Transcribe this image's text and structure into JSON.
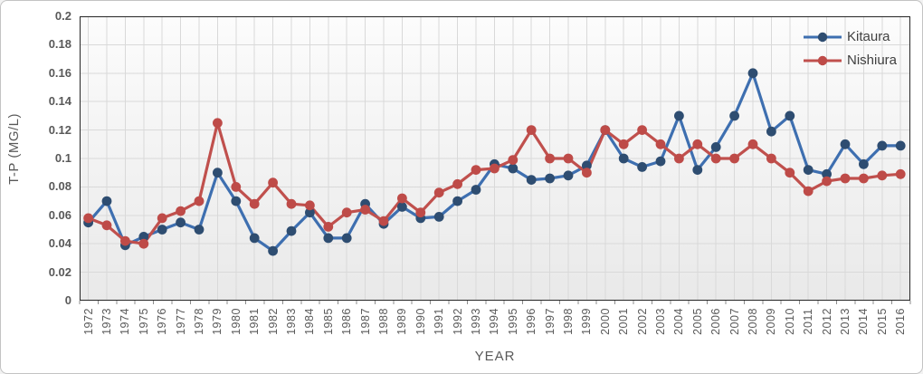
{
  "chart_data": {
    "type": "line",
    "title": "",
    "xlabel": "YEAR",
    "ylabel": "T-P (MG/L)",
    "ylim": [
      0,
      0.2
    ],
    "y_tick_step": 0.02,
    "y_tick_labels": [
      "0",
      "0.02",
      "0.04",
      "0.06",
      "0.08",
      "0.1",
      "0.12",
      "0.14",
      "0.16",
      "0.18",
      "0.2"
    ],
    "grid": true,
    "legend_position": "top-right-inside",
    "categories": [
      "1972",
      "1973",
      "1974",
      "1975",
      "1976",
      "1977",
      "1978",
      "1979",
      "1980",
      "1981",
      "1982",
      "1983",
      "1984",
      "1985",
      "1986",
      "1987",
      "1988",
      "1989",
      "1990",
      "1991",
      "1992",
      "1993",
      "1994",
      "1995",
      "1996",
      "1997",
      "1998",
      "1999",
      "2000",
      "2001",
      "2002",
      "2003",
      "2004",
      "2005",
      "2006",
      "2007",
      "2008",
      "2009",
      "2010",
      "2011",
      "2012",
      "2013",
      "2014",
      "2015",
      "2016"
    ],
    "series": [
      {
        "name": "Kitaura",
        "color": "#3E6FB0",
        "marker_color": "#2E4D71",
        "values": [
          0.055,
          0.07,
          0.039,
          0.045,
          0.05,
          0.055,
          0.05,
          0.09,
          0.07,
          0.044,
          0.035,
          0.049,
          0.062,
          0.044,
          0.044,
          0.068,
          0.054,
          0.066,
          0.058,
          0.059,
          0.07,
          0.078,
          0.096,
          0.093,
          0.085,
          0.086,
          0.088,
          0.095,
          0.12,
          0.1,
          0.094,
          0.098,
          0.13,
          0.092,
          0.108,
          0.13,
          0.16,
          0.119,
          0.13,
          0.092,
          0.089,
          0.11,
          0.096,
          0.109,
          0.109
        ]
      },
      {
        "name": "Nishiura",
        "color": "#C0504D",
        "marker_color": "#BE4B48",
        "values": [
          0.058,
          0.053,
          0.042,
          0.04,
          0.058,
          0.063,
          0.07,
          0.125,
          0.08,
          0.068,
          0.083,
          0.068,
          0.067,
          0.052,
          0.062,
          0.064,
          0.056,
          0.072,
          0.062,
          0.076,
          0.082,
          0.092,
          0.093,
          0.099,
          0.12,
          0.1,
          0.1,
          0.09,
          0.12,
          0.11,
          0.12,
          0.11,
          0.1,
          0.11,
          0.1,
          0.1,
          0.11,
          0.1,
          0.09,
          0.077,
          0.084,
          0.086,
          0.086,
          0.088,
          0.089
        ]
      }
    ],
    "style": {
      "plot_bg_top": "#fcfcfc",
      "plot_bg_bottom": "#e9e9e9",
      "gridline_color": "#d9d9d9",
      "border_color": "#262626",
      "tick_color": "#8c8c8c",
      "axis_text_color": "#595959",
      "legend_text_color": "#404040"
    }
  }
}
